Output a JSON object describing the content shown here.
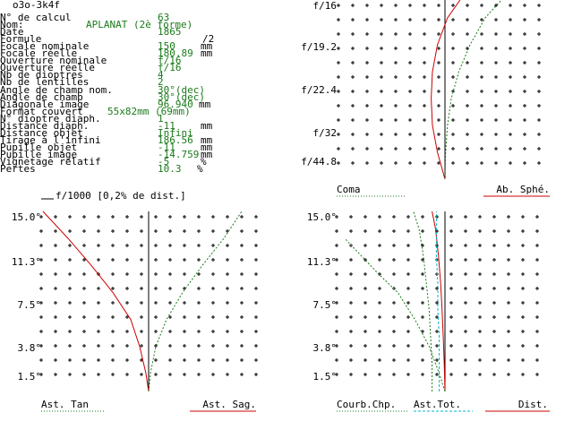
{
  "header": {
    "title": "o3o-3k4f"
  },
  "params": [
    {
      "label": "N° de calcul",
      "value": "63",
      "unit": ""
    },
    {
      "label": "Nom:",
      "value": "APLANAT (2è forme)",
      "unit": ""
    },
    {
      "label": "Date",
      "value": "1865",
      "unit": ""
    },
    {
      "label": "Formule",
      "value": "/2",
      "unit": ""
    },
    {
      "label": "Focale nominale",
      "value": "150",
      "unit": "mm"
    },
    {
      "label": "Focale réelle",
      "value": "180.89",
      "unit": "mm"
    },
    {
      "label": "Ouverture nominale",
      "value": "f/16",
      "unit": ""
    },
    {
      "label": "Ouverture réelle",
      "value": "f/16",
      "unit": ""
    },
    {
      "label": "Nb de dioptres",
      "value": "4",
      "unit": ""
    },
    {
      "label": "Nb de lentilles",
      "value": "2",
      "unit": ""
    },
    {
      "label": "Angle de champ nom.",
      "value": "30°(dec)",
      "unit": ""
    },
    {
      "label": "Angle de champ",
      "value": "30°(dec)",
      "unit": ""
    },
    {
      "label": "Diagonale image",
      "value": "96.940",
      "unit": "mm"
    },
    {
      "label": "Format couvert",
      "value": "55x82mm (69mm)",
      "unit": ""
    },
    {
      "label": "N° dioptre diaph.",
      "value": "1",
      "unit": ""
    },
    {
      "label": "Distance diaph.",
      "value": "-11",
      "unit": "mm"
    },
    {
      "label": "Distance objet",
      "value": "Infini",
      "unit": ""
    },
    {
      "label": "Tirage à l'infini",
      "value": "186.56",
      "unit": "mm"
    },
    {
      "label": "Pupille objet",
      "value": "-11",
      "unit": "mm"
    },
    {
      "label": "Pupille image",
      "value": "-14.759",
      "unit": "mm"
    },
    {
      "label": "Vignetage relatif",
      "value": "-5",
      "unit": "%"
    },
    {
      "label": "Pertes",
      "value": "10.3",
      "unit": "%"
    }
  ],
  "scale_note": "f/1000 [0,2% de dist.]",
  "colors": {
    "red": "#cc0000",
    "green": "#1a7a1a",
    "cyan": "#00b8c8",
    "text_green": "#1a7a1a"
  },
  "chart_data": [
    {
      "type": "line",
      "title": "",
      "y_tick_labels": [
        "f/16",
        "f/19.2",
        "f/22.4",
        "f/32",
        "f/44.8"
      ],
      "legend": [
        {
          "name": "Coma",
          "color": "#1a7a1a",
          "style": "dotted"
        },
        {
          "name": "Ab. Sphé.",
          "color": "#cc0000",
          "style": "solid"
        }
      ],
      "series": [
        {
          "name": "Ab. Sphé.",
          "color": "#cc0000",
          "x": [
            0,
            -0.6,
            -1.0,
            -1.1,
            -1.0,
            -0.6,
            0.2,
            1.2
          ],
          "y": [
            0,
            0.15,
            0.3,
            0.45,
            0.6,
            0.75,
            0.9,
            1.0
          ]
        },
        {
          "name": "Coma",
          "color": "#1a7a1a",
          "x": [
            0,
            0.05,
            0.2,
            0.5,
            1.1,
            2.0,
            3.2,
            4.5
          ],
          "y": [
            0,
            0.15,
            0.3,
            0.45,
            0.6,
            0.75,
            0.9,
            1.0
          ]
        }
      ]
    },
    {
      "type": "line",
      "title": "",
      "y_tick_labels": [
        "15.0°",
        "11.3°",
        "7.5°",
        "3.8°",
        "1.5°"
      ],
      "legend": [
        {
          "name": "Ast. Tan",
          "color": "#1a7a1a",
          "style": "dotted"
        },
        {
          "name": "Ast. Sag.",
          "color": "#cc0000",
          "style": "solid"
        }
      ],
      "series": [
        {
          "name": "Ast. Sag.",
          "color": "#cc0000",
          "x": [
            0,
            -0.15,
            -0.5,
            -1.0,
            -2.0,
            -3.2,
            -4.5,
            -5.9
          ],
          "y": [
            0,
            0.1,
            0.25,
            0.4,
            0.55,
            0.7,
            0.85,
            1.0
          ]
        },
        {
          "name": "Ast. Tan",
          "color": "#1a7a1a",
          "x": [
            0,
            0.1,
            0.4,
            1.0,
            1.9,
            3.0,
            4.2,
            5.2
          ],
          "y": [
            0,
            0.1,
            0.25,
            0.4,
            0.55,
            0.7,
            0.85,
            1.0
          ]
        }
      ]
    },
    {
      "type": "line",
      "title": "",
      "y_tick_labels": [
        "15.0°",
        "11.3°",
        "7.5°",
        "3.8°",
        "1.5°"
      ],
      "legend": [
        {
          "name": "Courb.Chp.",
          "color": "#1a7a1a",
          "style": "dotted"
        },
        {
          "name": "Ast.Tot.",
          "color": "#00b8c8",
          "style": "dashed"
        },
        {
          "name": "Dist.",
          "color": "#cc0000",
          "style": "solid"
        }
      ],
      "series": [
        {
          "name": "Dist.",
          "color": "#cc0000",
          "x": [
            0,
            -0.05,
            -0.12,
            -0.2,
            -0.3,
            -0.45,
            -0.65,
            -0.9
          ],
          "y": [
            0,
            0.15,
            0.3,
            0.45,
            0.6,
            0.75,
            0.9,
            1.0
          ]
        },
        {
          "name": "Courb.Chp.",
          "color": "#1a7a1a",
          "x": [
            0,
            -0.4,
            -1.1,
            -2.1,
            -3.3,
            -4.6,
            -5.8,
            -7.0
          ],
          "y": [
            0,
            0.1,
            0.25,
            0.4,
            0.55,
            0.65,
            0.75,
            0.85
          ]
        },
        {
          "name": "Ast.Tot.",
          "color": "#00b8c8",
          "x": [
            -0.4,
            -0.4,
            -0.4,
            -0.5,
            -0.5,
            -0.6,
            -0.6,
            -0.6
          ],
          "y": [
            0,
            0.15,
            0.3,
            0.45,
            0.6,
            0.75,
            0.9,
            1.0
          ]
        },
        {
          "name": "Courb.Chp.",
          "color": "#1a7a1a",
          "x": [
            -0.9,
            -0.9,
            -1.0,
            -1.1,
            -1.3,
            -1.5,
            -1.8,
            -2.2
          ],
          "y": [
            0,
            0.15,
            0.3,
            0.45,
            0.6,
            0.75,
            0.9,
            1.0
          ]
        }
      ]
    }
  ]
}
